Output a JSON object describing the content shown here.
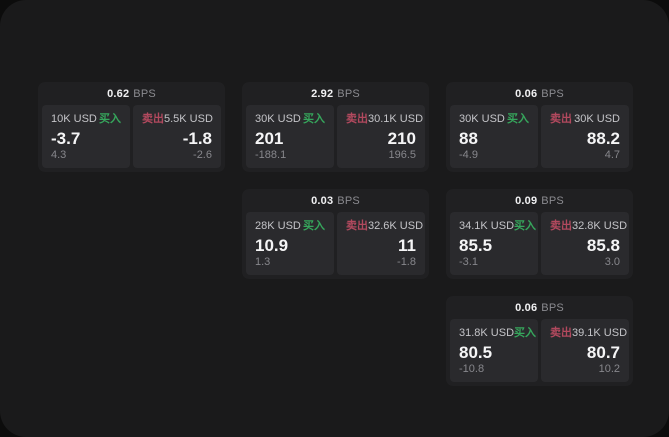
{
  "labels": {
    "bps_unit": "BPS",
    "buy": "买入",
    "sell": "卖出"
  },
  "colors": {
    "page_bg": "#0c0c0c",
    "panel_bg": "#1a1a1b",
    "card_bg": "#202022",
    "tile_bg": "#2a2a2d",
    "buy": "#36a65c",
    "sell": "#b2495e"
  },
  "cards": [
    {
      "bps": "0.62",
      "buy": {
        "size": "10K USD",
        "price": "-3.7",
        "change": "4.3"
      },
      "sell": {
        "size": "5.5K USD",
        "price": "-1.8",
        "change": "-2.6"
      }
    },
    {
      "bps": "2.92",
      "buy": {
        "size": "30K USD",
        "price": "201",
        "change": "-188.1"
      },
      "sell": {
        "size": "30.1K USD",
        "price": "210",
        "change": "196.5"
      }
    },
    {
      "bps": "0.06",
      "buy": {
        "size": "30K USD",
        "price": "88",
        "change": "-4.9"
      },
      "sell": {
        "size": "30K USD",
        "price": "88.2",
        "change": "4.7"
      }
    },
    {
      "bps": "0.03",
      "buy": {
        "size": "28K USD",
        "price": "10.9",
        "change": "1.3"
      },
      "sell": {
        "size": "32.6K USD",
        "price": "11",
        "change": "-1.8"
      }
    },
    {
      "bps": "0.09",
      "buy": {
        "size": "34.1K USD",
        "price": "85.5",
        "change": "-3.1"
      },
      "sell": {
        "size": "32.8K USD",
        "price": "85.8",
        "change": "3.0"
      }
    },
    {
      "bps": "0.06",
      "buy": {
        "size": "31.8K USD",
        "price": "80.5",
        "change": "-10.8"
      },
      "sell": {
        "size": "39.1K USD",
        "price": "80.7",
        "change": "10.2"
      }
    }
  ]
}
